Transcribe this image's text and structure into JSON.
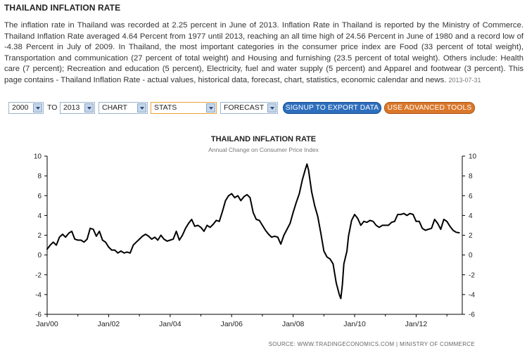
{
  "header": {
    "title": "THAILAND INFLATION RATE",
    "description": "The inflation rate in Thailand was recorded at 2.25 percent in June of 2013. Inflation Rate in Thailand is reported by the Ministry of Commerce. Thailand Inflation Rate averaged 4.64 Percent from 1977 until 2013, reaching an all time high of 24.56 Percent in June of 1980 and a record low of -4.38 Percent in July of 2009. In Thailand, the most important categories in the consumer price index are Food (33 percent of total weight), Transportation and communication (27 percent of total weight) and Housing and furnishing (23.5 percent of total weight). Others include: Health care (7 percent); Recreation and education (5 percent), Electricity, fuel and water supply (5 percent) and Apparel and footwear (3 percent). This page contains - Thailand Inflation Rate - actual values, historical data, forecast, chart, statistics, economic calendar and news.",
    "date": "2013-07-31"
  },
  "controls": {
    "from_year": "2000",
    "to_label": "TO",
    "to_year": "2013",
    "chart_select": "CHART",
    "stats_select": "STATS",
    "forecast_select": "FORECAST",
    "signup_button": "SIGNUP TO EXPORT DATA",
    "advanced_button": "USE ADVANCED TOOLS"
  },
  "colors": {
    "signup_button": "#2d6ebd",
    "advanced_button": "#d9772a",
    "line": "#000000"
  },
  "chart_data": {
    "type": "line",
    "title": "THAILAND INFLATION RATE",
    "subtitle": "Annual Change on Consumer Price Index",
    "xlabel": "",
    "ylabel": "",
    "ylim": [
      -6,
      10
    ],
    "yticks": [
      -6,
      -4,
      -2,
      0,
      2,
      4,
      6,
      8,
      10
    ],
    "x_range": [
      2000.0,
      2013.5
    ],
    "xticks": [
      {
        "x": 2000,
        "label": "Jan/00"
      },
      {
        "x": 2002,
        "label": "Jan/02"
      },
      {
        "x": 2004,
        "label": "Jan/04"
      },
      {
        "x": 2006,
        "label": "Jan/06"
      },
      {
        "x": 2008,
        "label": "Jan/08"
      },
      {
        "x": 2010,
        "label": "Jan/10"
      },
      {
        "x": 2012,
        "label": "Jan/12"
      }
    ],
    "grid": false,
    "series": [
      {
        "values": [
          [
            2000.0,
            0.6
          ],
          [
            2000.1,
            1.0
          ],
          [
            2000.2,
            1.3
          ],
          [
            2000.3,
            1.0
          ],
          [
            2000.4,
            1.8
          ],
          [
            2000.5,
            2.1
          ],
          [
            2000.6,
            1.8
          ],
          [
            2000.7,
            2.2
          ],
          [
            2000.8,
            2.4
          ],
          [
            2000.9,
            1.6
          ],
          [
            2001.0,
            1.5
          ],
          [
            2001.1,
            1.5
          ],
          [
            2001.2,
            1.3
          ],
          [
            2001.3,
            1.6
          ],
          [
            2001.4,
            2.7
          ],
          [
            2001.5,
            2.6
          ],
          [
            2001.6,
            1.9
          ],
          [
            2001.7,
            2.4
          ],
          [
            2001.8,
            1.5
          ],
          [
            2001.9,
            1.3
          ],
          [
            2002.0,
            0.8
          ],
          [
            2002.1,
            0.5
          ],
          [
            2002.2,
            0.5
          ],
          [
            2002.3,
            0.2
          ],
          [
            2002.4,
            0.4
          ],
          [
            2002.5,
            0.2
          ],
          [
            2002.6,
            0.3
          ],
          [
            2002.7,
            0.2
          ],
          [
            2002.8,
            1.0
          ],
          [
            2002.9,
            1.3
          ],
          [
            2003.0,
            1.6
          ],
          [
            2003.1,
            1.9
          ],
          [
            2003.2,
            2.1
          ],
          [
            2003.3,
            1.9
          ],
          [
            2003.4,
            1.6
          ],
          [
            2003.5,
            1.8
          ],
          [
            2003.6,
            1.5
          ],
          [
            2003.7,
            2.0
          ],
          [
            2003.8,
            1.6
          ],
          [
            2003.9,
            1.4
          ],
          [
            2004.0,
            1.5
          ],
          [
            2004.1,
            1.6
          ],
          [
            2004.2,
            2.4
          ],
          [
            2004.3,
            1.5
          ],
          [
            2004.4,
            2.0
          ],
          [
            2004.5,
            2.7
          ],
          [
            2004.6,
            3.2
          ],
          [
            2004.7,
            3.6
          ],
          [
            2004.8,
            2.9
          ],
          [
            2004.9,
            3.0
          ],
          [
            2005.0,
            2.8
          ],
          [
            2005.1,
            2.4
          ],
          [
            2005.2,
            3.0
          ],
          [
            2005.3,
            2.8
          ],
          [
            2005.4,
            3.1
          ],
          [
            2005.5,
            3.5
          ],
          [
            2005.6,
            3.4
          ],
          [
            2005.7,
            4.4
          ],
          [
            2005.8,
            5.5
          ],
          [
            2005.9,
            6.0
          ],
          [
            2006.0,
            6.2
          ],
          [
            2006.1,
            5.8
          ],
          [
            2006.2,
            6.0
          ],
          [
            2006.3,
            5.5
          ],
          [
            2006.4,
            5.9
          ],
          [
            2006.5,
            6.1
          ],
          [
            2006.6,
            5.8
          ],
          [
            2006.7,
            4.3
          ],
          [
            2006.8,
            3.6
          ],
          [
            2006.9,
            3.5
          ],
          [
            2007.0,
            3.0
          ],
          [
            2007.1,
            2.5
          ],
          [
            2007.2,
            2.1
          ],
          [
            2007.3,
            1.8
          ],
          [
            2007.4,
            1.9
          ],
          [
            2007.5,
            1.8
          ],
          [
            2007.6,
            1.1
          ],
          [
            2007.7,
            2.0
          ],
          [
            2007.8,
            2.6
          ],
          [
            2007.9,
            3.2
          ],
          [
            2008.0,
            4.3
          ],
          [
            2008.1,
            5.3
          ],
          [
            2008.2,
            6.2
          ],
          [
            2008.3,
            7.6
          ],
          [
            2008.4,
            8.7
          ],
          [
            2008.45,
            9.2
          ],
          [
            2008.5,
            8.6
          ],
          [
            2008.6,
            6.4
          ],
          [
            2008.7,
            5.0
          ],
          [
            2008.8,
            3.9
          ],
          [
            2008.9,
            2.2
          ],
          [
            2009.0,
            0.4
          ],
          [
            2009.1,
            -0.2
          ],
          [
            2009.2,
            -0.4
          ],
          [
            2009.3,
            -0.9
          ],
          [
            2009.4,
            -2.8
          ],
          [
            2009.5,
            -4.0
          ],
          [
            2009.55,
            -4.4
          ],
          [
            2009.6,
            -3.0
          ],
          [
            2009.65,
            -0.9
          ],
          [
            2009.75,
            0.4
          ],
          [
            2009.8,
            1.9
          ],
          [
            2009.9,
            3.5
          ],
          [
            2010.0,
            4.1
          ],
          [
            2010.1,
            3.7
          ],
          [
            2010.2,
            3.0
          ],
          [
            2010.3,
            3.4
          ],
          [
            2010.4,
            3.3
          ],
          [
            2010.5,
            3.5
          ],
          [
            2010.6,
            3.4
          ],
          [
            2010.7,
            3.0
          ],
          [
            2010.8,
            2.8
          ],
          [
            2010.9,
            3.0
          ],
          [
            2011.0,
            3.0
          ],
          [
            2011.1,
            3.0
          ],
          [
            2011.2,
            3.3
          ],
          [
            2011.3,
            3.4
          ],
          [
            2011.4,
            4.1
          ],
          [
            2011.5,
            4.1
          ],
          [
            2011.6,
            4.2
          ],
          [
            2011.7,
            4.0
          ],
          [
            2011.8,
            4.2
          ],
          [
            2011.9,
            4.1
          ],
          [
            2012.0,
            3.4
          ],
          [
            2012.1,
            3.4
          ],
          [
            2012.2,
            2.7
          ],
          [
            2012.3,
            2.5
          ],
          [
            2012.4,
            2.6
          ],
          [
            2012.5,
            2.7
          ],
          [
            2012.6,
            3.6
          ],
          [
            2012.7,
            3.2
          ],
          [
            2012.8,
            2.6
          ],
          [
            2012.9,
            3.6
          ],
          [
            2013.0,
            3.4
          ],
          [
            2013.1,
            2.9
          ],
          [
            2013.2,
            2.5
          ],
          [
            2013.3,
            2.3
          ],
          [
            2013.4,
            2.25
          ]
        ]
      }
    ],
    "source": "SOURCE: WWW.TRADINGECONOMICS.COM | MINISTRY OF COMMERCE"
  }
}
